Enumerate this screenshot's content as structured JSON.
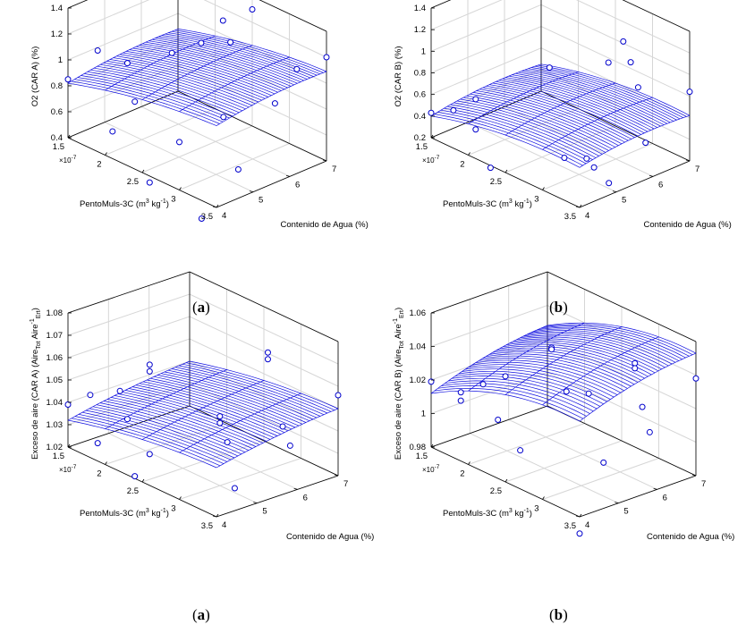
{
  "panels": [
    {
      "caption_letter": "a",
      "zlabel": "O2 (CAR A) (%)",
      "xlabel_main": "PentoMuls-3C (m",
      "xlabel_sup1": "3",
      "xlabel_mid": " kg",
      "xlabel_sup2": "-1",
      "xlabel_end": ")",
      "ylabel": "Contenido de Agua (%)",
      "x_multiplier": "×10",
      "x_multiplier_exp": "-7"
    },
    {
      "caption_letter": "b",
      "zlabel": "O2 (CAR B) (%)",
      "xlabel_main": "PentoMuls-3C (m",
      "xlabel_sup1": "3",
      "xlabel_mid": " kg",
      "xlabel_sup2": "-1",
      "xlabel_end": ")",
      "ylabel": "Contenido de Agua (%)",
      "x_multiplier": "×10",
      "x_multiplier_exp": "-7"
    },
    {
      "caption_letter": "a",
      "zlabel": "Exceso de aire (CAR A) (Aire",
      "zlabel_sub1": "Tot",
      "zlabel_mid": " Aire",
      "zlabel_sup": "-1",
      "zlabel_sub2": "Ert",
      "zlabel_end": ")",
      "xlabel_main": "PentoMuls-3C (m",
      "xlabel_sup1": "3",
      "xlabel_mid": " kg",
      "xlabel_sup2": "-1",
      "xlabel_end": ")",
      "ylabel": "Contenido de Agua (%)",
      "x_multiplier": "×10",
      "x_multiplier_exp": "-7"
    },
    {
      "caption_letter": "b",
      "zlabel": "Exceso de aire (CAR B) (Aire",
      "zlabel_sub1": "Tot",
      "zlabel_mid": " Aire",
      "zlabel_sup": "-1",
      "zlabel_sub2": "Ert",
      "zlabel_end": ")",
      "xlabel_main": "PentoMuls-3C (m",
      "xlabel_sup1": "3",
      "xlabel_mid": " kg",
      "xlabel_sup2": "-1",
      "xlabel_end": ")",
      "ylabel": "Contenido de Agua (%)",
      "x_multiplier": "×10",
      "x_multiplier_exp": "-7"
    }
  ],
  "colors": {
    "surface": "#1010e0",
    "marker": "#0000cc",
    "axis": "#000000",
    "grid": "#d6d6d6"
  },
  "chart_data": [
    {
      "type": "surface",
      "x_ticks": [
        "1.5",
        "2",
        "2.5",
        "3",
        "3.5"
      ],
      "x_range": [
        1.5,
        3.5
      ],
      "y_ticks": [
        "4",
        "5",
        "6",
        "7"
      ],
      "y_range": [
        4,
        7
      ],
      "z_ticks": [
        "0.4",
        "0.6",
        "0.8",
        "1",
        "1.2",
        "1.4"
      ],
      "z_range": [
        0.4,
        1.4
      ],
      "surface_model": {
        "c": 0.82,
        "a": 0.36,
        "b": 0.16,
        "ax2": -0.15,
        "by2": -0.1
      },
      "points": [
        {
          "x": 1.5,
          "y": 4,
          "z": 0.85
        },
        {
          "x": 1.9,
          "y": 4,
          "z": 1.18
        },
        {
          "x": 2.3,
          "y": 4,
          "z": 1.19
        },
        {
          "x": 2.9,
          "y": 4,
          "z": 1.43
        },
        {
          "x": 2.1,
          "y": 4,
          "z": 0.61
        },
        {
          "x": 2.4,
          "y": 4,
          "z": 0.92
        },
        {
          "x": 3.0,
          "y": 4,
          "z": 0.77
        },
        {
          "x": 2.6,
          "y": 4,
          "z": 0.35
        },
        {
          "x": 3.3,
          "y": 4,
          "z": 0.26
        },
        {
          "x": 2.8,
          "y": 5,
          "z": 1.36
        },
        {
          "x": 3.1,
          "y": 5,
          "z": 0.87
        },
        {
          "x": 3.3,
          "y": 5,
          "z": 0.52
        },
        {
          "x": 2.6,
          "y": 6,
          "z": 1.36
        },
        {
          "x": 2.7,
          "y": 6,
          "z": 1.22
        },
        {
          "x": 3.3,
          "y": 6,
          "z": 0.91
        },
        {
          "x": 2.5,
          "y": 7,
          "z": 1.3
        },
        {
          "x": 3.1,
          "y": 7,
          "z": 1.0
        },
        {
          "x": 3.5,
          "y": 7,
          "z": 1.2
        }
      ]
    },
    {
      "type": "surface",
      "x_ticks": [
        "1.5",
        "2",
        "2.5",
        "3",
        "3.5"
      ],
      "x_range": [
        1.5,
        3.5
      ],
      "y_ticks": [
        "4",
        "5",
        "6",
        "7"
      ],
      "y_range": [
        4,
        7
      ],
      "z_ticks": [
        "0.2",
        "0.4",
        "0.6",
        "0.8",
        "1",
        "1.2",
        "1.4"
      ],
      "z_range": [
        0.2,
        1.4
      ],
      "surface_model": {
        "c": 0.4,
        "a": 0.42,
        "b": 0.2,
        "ax2": -0.25,
        "by2": -0.15
      },
      "points": [
        {
          "x": 1.5,
          "y": 4,
          "z": 0.43
        },
        {
          "x": 1.8,
          "y": 4,
          "z": 0.55
        },
        {
          "x": 2.1,
          "y": 4,
          "z": 0.75
        },
        {
          "x": 2.1,
          "y": 4,
          "z": 0.47
        },
        {
          "x": 2.3,
          "y": 4,
          "z": 0.18
        },
        {
          "x": 2.6,
          "y": 5,
          "z": 1.06
        },
        {
          "x": 2.8,
          "y": 5,
          "z": 0.29
        },
        {
          "x": 3.1,
          "y": 5,
          "z": 0.38
        },
        {
          "x": 3.2,
          "y": 5,
          "z": 0.33
        },
        {
          "x": 3.4,
          "y": 5,
          "z": 0.25
        },
        {
          "x": 2.9,
          "y": 6,
          "z": 1.06
        },
        {
          "x": 3.1,
          "y": 6,
          "z": 1.32
        },
        {
          "x": 3.2,
          "y": 6,
          "z": 1.16
        },
        {
          "x": 3.3,
          "y": 6,
          "z": 0.96
        },
        {
          "x": 3.4,
          "y": 6,
          "z": 0.48
        },
        {
          "x": 3.5,
          "y": 7,
          "z": 0.84
        }
      ]
    },
    {
      "type": "surface",
      "x_ticks": [
        "1.5",
        "2",
        "2.5",
        "3",
        "3.5"
      ],
      "x_range": [
        1.5,
        3.5
      ],
      "y_ticks": [
        "4",
        "5",
        "6",
        "7"
      ],
      "y_range": [
        4,
        7
      ],
      "z_ticks": [
        "1.02",
        "1.03",
        "1.04",
        "1.05",
        "1.06",
        "1.07",
        "1.08"
      ],
      "z_range": [
        1.02,
        1.08
      ],
      "surface_model": {
        "c": 1.032,
        "a": 0.018,
        "b": 0.012,
        "ax2": -0.008,
        "by2": -0.004
      },
      "points": [
        {
          "x": 1.5,
          "y": 4,
          "z": 1.039
        },
        {
          "x": 1.8,
          "y": 4,
          "z": 1.048
        },
        {
          "x": 1.9,
          "y": 4,
          "z": 1.028
        },
        {
          "x": 2.2,
          "y": 4,
          "z": 1.056
        },
        {
          "x": 2.3,
          "y": 4,
          "z": 1.045
        },
        {
          "x": 2.4,
          "y": 4,
          "z": 1.021
        },
        {
          "x": 2.6,
          "y": 4,
          "z": 1.074
        },
        {
          "x": 2.6,
          "y": 4,
          "z": 1.071
        },
        {
          "x": 2.6,
          "y": 4,
          "z": 1.034
        },
        {
          "x": 3.0,
          "y": 5,
          "z": 1.051
        },
        {
          "x": 3.0,
          "y": 5,
          "z": 1.048
        },
        {
          "x": 3.1,
          "y": 5,
          "z": 1.041
        },
        {
          "x": 3.2,
          "y": 5,
          "z": 1.022
        },
        {
          "x": 3.1,
          "y": 6,
          "z": 1.075
        },
        {
          "x": 3.1,
          "y": 6,
          "z": 1.072
        },
        {
          "x": 3.3,
          "y": 6,
          "z": 1.045
        },
        {
          "x": 3.4,
          "y": 6,
          "z": 1.038
        },
        {
          "x": 3.5,
          "y": 7,
          "z": 1.056
        }
      ]
    },
    {
      "type": "surface",
      "x_ticks": [
        "1.5",
        "2",
        "2.5",
        "3",
        "3.5"
      ],
      "x_range": [
        1.5,
        3.5
      ],
      "y_ticks": [
        "4",
        "5",
        "6",
        "7"
      ],
      "y_range": [
        4,
        7
      ],
      "z_ticks": [
        "0.98",
        "1",
        "1.02",
        "1.04",
        "1.06"
      ],
      "z_range": [
        0.98,
        1.06
      ],
      "surface_model": {
        "c": 1.012,
        "a": 0.055,
        "b": 0.028,
        "ax2": -0.03,
        "by2": -0.012
      },
      "points": [
        {
          "x": 1.5,
          "y": 4,
          "z": 1.019
        },
        {
          "x": 1.9,
          "y": 4,
          "z": 1.021
        },
        {
          "x": 1.9,
          "y": 4,
          "z": 1.016
        },
        {
          "x": 2.2,
          "y": 4,
          "z": 1.032
        },
        {
          "x": 2.4,
          "y": 4,
          "z": 1.015
        },
        {
          "x": 2.5,
          "y": 4,
          "z": 1.043
        },
        {
          "x": 2.7,
          "y": 4,
          "z": 1.003
        },
        {
          "x": 2.6,
          "y": 5,
          "z": 1.054
        },
        {
          "x": 2.6,
          "y": 5,
          "z": 1.053
        },
        {
          "x": 2.8,
          "y": 5,
          "z": 1.032
        },
        {
          "x": 3.1,
          "y": 5,
          "z": 1.037
        },
        {
          "x": 3.3,
          "y": 5,
          "z": 1.0
        },
        {
          "x": 3.2,
          "y": 6,
          "z": 1.049
        },
        {
          "x": 3.2,
          "y": 6,
          "z": 1.046
        },
        {
          "x": 3.3,
          "y": 6,
          "z": 1.025
        },
        {
          "x": 3.4,
          "y": 6,
          "z": 1.012
        },
        {
          "x": 3.5,
          "y": 7,
          "z": 1.038
        },
        {
          "x": 3.5,
          "y": 4,
          "z": 0.97
        }
      ]
    }
  ]
}
